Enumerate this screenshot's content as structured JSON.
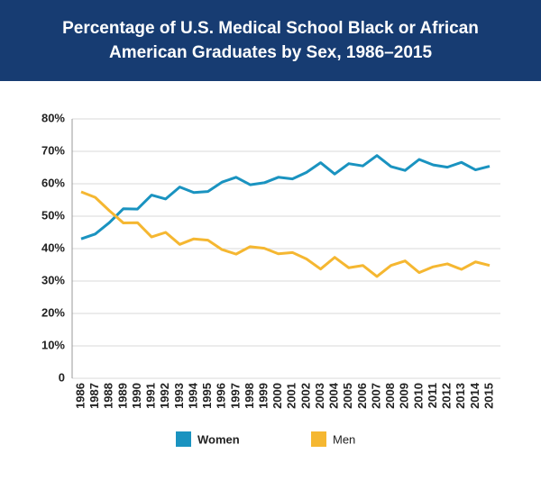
{
  "chart_data": {
    "type": "line",
    "title": "Percentage of U.S. Medical School Black or African American Graduates by Sex, 1986–2015",
    "categories": [
      "1986",
      "1987",
      "1988",
      "1989",
      "1990",
      "1991",
      "1992",
      "1993",
      "1994",
      "1995",
      "1996",
      "1997",
      "1998",
      "1999",
      "2000",
      "2001",
      "2002",
      "2003",
      "2004",
      "2005",
      "2006",
      "2007",
      "2008",
      "2009",
      "2010",
      "2011",
      "2012",
      "2013",
      "2014",
      "2015"
    ],
    "series": [
      {
        "name": "Women",
        "color": "#1a93c0",
        "values": [
          43,
          44.5,
          48,
          52.3,
          52.2,
          56.5,
          55.3,
          59,
          57.3,
          57.6,
          60.5,
          62,
          59.7,
          60.3,
          62,
          61.5,
          63.5,
          66.5,
          63,
          66.2,
          65.5,
          68.7,
          65.3,
          64.1,
          67.5,
          65.8,
          65.1,
          66.6,
          64.3,
          65.4
        ]
      },
      {
        "name": "Men",
        "color": "#f5b731",
        "values": [
          57.5,
          55.8,
          51.7,
          47.9,
          48,
          43.6,
          45,
          41.3,
          43,
          42.6,
          39.7,
          38.3,
          40.6,
          40.1,
          38.4,
          38.8,
          36.8,
          33.7,
          37.3,
          34.1,
          34.8,
          31.4,
          34.8,
          36.2,
          32.6,
          34.4,
          35.3,
          33.6,
          35.9,
          34.8
        ]
      }
    ],
    "ylim": [
      0,
      80
    ],
    "yticks": [
      0,
      {
        "value": 10,
        "label": "10%"
      },
      {
        "value": 20,
        "label": "20%"
      },
      {
        "value": 30,
        "label": "30%"
      },
      {
        "value": 40,
        "label": "40%"
      },
      {
        "value": 50,
        "label": "50%"
      },
      {
        "value": 60,
        "label": "60%"
      },
      {
        "value": 70,
        "label": "70%"
      },
      {
        "value": 80,
        "label": "80%"
      }
    ],
    "grid": true,
    "legend": "bottom"
  }
}
